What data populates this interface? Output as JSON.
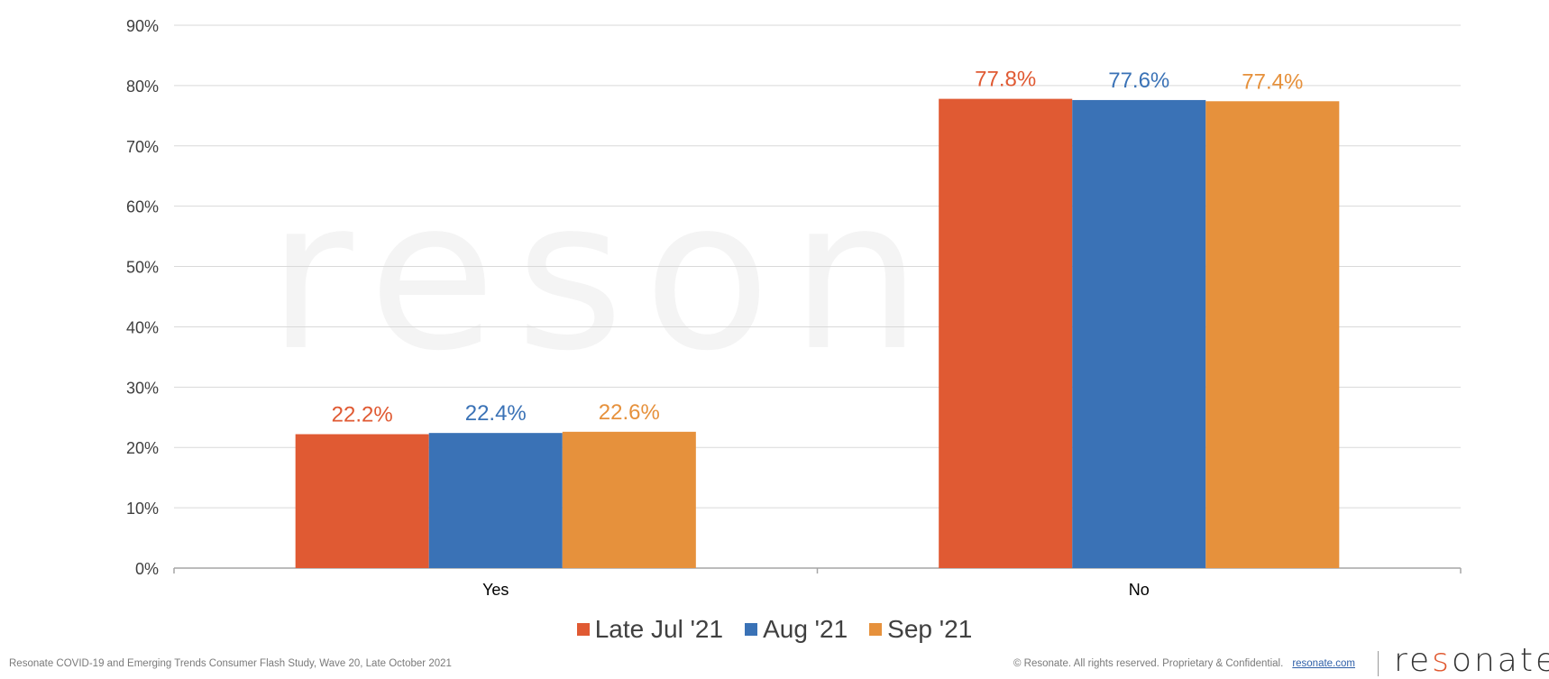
{
  "chart_data": {
    "type": "bar",
    "categories": [
      "Yes",
      "No"
    ],
    "series": [
      {
        "name": "Late Jul '21",
        "values": [
          22.2,
          77.8
        ],
        "color": "#e05a33"
      },
      {
        "name": "Aug '21",
        "values": [
          22.4,
          77.6
        ],
        "color": "#3a72b6"
      },
      {
        "name": "Sep '21",
        "values": [
          22.6,
          77.4
        ],
        "color": "#e6913c"
      }
    ],
    "data_labels": [
      [
        "22.2%",
        "77.8%"
      ],
      [
        "22.4%",
        "77.6%"
      ],
      [
        "22.6%",
        "77.4%"
      ]
    ],
    "yticks": [
      "0%",
      "10%",
      "20%",
      "30%",
      "40%",
      "50%",
      "60%",
      "70%",
      "80%",
      "90%"
    ],
    "ylim": [
      0,
      90
    ],
    "grid": true,
    "legend_position": "bottom",
    "title": "",
    "xlabel": "",
    "ylabel": ""
  },
  "footer": {
    "source": "Resonate COVID-19 and Emerging Trends Consumer Flash Study, Wave 20, Late October 2021",
    "copyright": "© Resonate. All rights reserved. Proprietary & Confidential.",
    "link": "resonate.com"
  },
  "logo": {
    "text": "resonate",
    "accent_color": "#e0582f"
  },
  "watermark": "resonate"
}
